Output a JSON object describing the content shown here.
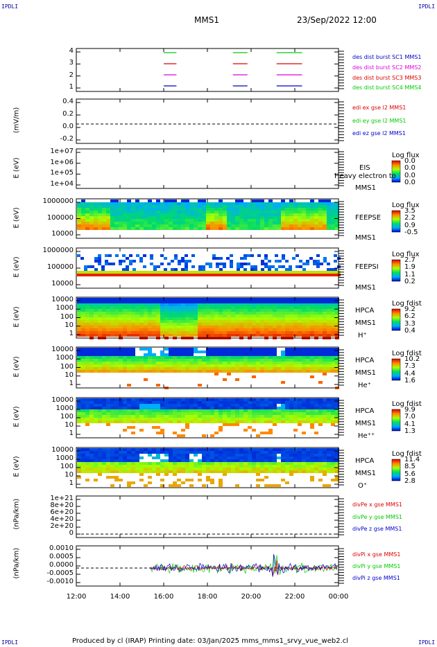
{
  "corners": {
    "tl": "IPDLI",
    "tr": "IPDLI",
    "bl": "IPDLI",
    "br": "IPDLI"
  },
  "header": {
    "spacecraft": "MMS1",
    "datetime": "23/Sep/2022 12:00"
  },
  "footer": "Produced by cl (IRAP)   Printing date: 03/Jan/2025   mms_mms1_srvy_vue_web2.cl",
  "colors": {
    "red": "#dd0000",
    "green": "#00cc00",
    "blue": "#0000cc",
    "magenta": "#dd00dd"
  },
  "chart_data": {
    "type": "multi-panel time series",
    "x_range": [
      "12:00",
      "00:00"
    ],
    "x_ticks": [
      "12:00",
      "14:00",
      "16:00",
      "18:00",
      "20:00",
      "22:00",
      "00:00"
    ],
    "panels": [
      {
        "id": "burst",
        "ylabel": "",
        "ticks": [
          "4",
          "3",
          "2",
          "1"
        ],
        "legend": [
          {
            "text": "des dist burst SC1 MMS1",
            "color": "#0000cc"
          },
          {
            "text": "des dist burst SC2 MMS2",
            "color": "#dd00dd"
          },
          {
            "text": "des dist burst SC3 MMS3",
            "color": "#dd0000"
          },
          {
            "text": "des dist burst SC4 MMS4",
            "color": "#00cc00"
          }
        ],
        "intervals": [
          [
            "16:00",
            "16:35"
          ],
          [
            "19:10",
            "19:50"
          ],
          [
            "21:10",
            "22:20"
          ]
        ]
      },
      {
        "id": "edi",
        "ylabel": "(mV/m)",
        "ticks": [
          "0.4",
          "0.2",
          "0.0",
          "-0.2"
        ],
        "legend": [
          {
            "text": "edi ex gse l2 MMS1",
            "color": "#dd0000"
          },
          {
            "text": "edi ey gse l2 MMS1",
            "color": "#00cc00"
          },
          {
            "text": "edi ez gse l2 MMS1",
            "color": "#0000cc"
          }
        ]
      },
      {
        "id": "eis",
        "ylabel": "E (eV)",
        "ticks": [
          "1e+07",
          "1e+06",
          "1e+05",
          "1e+04"
        ],
        "side": [
          "EIS",
          "Heavy electron to",
          "MMS1"
        ],
        "cbar_title": "Log flux",
        "cbar_vals": [
          "0.0",
          "0.0",
          "0.0",
          "0.0"
        ]
      },
      {
        "id": "feepse",
        "ylabel": "E (eV)",
        "ticks": [
          "1000000",
          "100000",
          "10000"
        ],
        "side": [
          "FEEPSE",
          "MMS1"
        ],
        "cbar_title": "Log flux",
        "cbar_vals": [
          "3.5",
          "2.2",
          "0.9",
          "-0.5"
        ]
      },
      {
        "id": "feepsi",
        "ylabel": "E (eV)",
        "ticks": [
          "1000000",
          "100000",
          "10000"
        ],
        "side": [
          "FEEPSI",
          "MMS1"
        ],
        "cbar_title": "Log flux",
        "cbar_vals": [
          "2.7",
          "1.9",
          "1.1",
          "0.2"
        ]
      },
      {
        "id": "hpca_h",
        "ylabel": "E (eV)",
        "ticks": [
          "10000",
          "1000",
          "100",
          "10",
          "1"
        ],
        "side": [
          "HPCA",
          "MMS1",
          "H⁺"
        ],
        "cbar_title": "Log fdist",
        "cbar_vals": [
          "9.2",
          "6.2",
          "3.3",
          "0.4"
        ]
      },
      {
        "id": "hpca_he",
        "ylabel": "E (eV)",
        "ticks": [
          "10000",
          "1000",
          "100",
          "10",
          "1"
        ],
        "side": [
          "HPCA",
          "MMS1",
          "He⁺"
        ],
        "cbar_title": "Log fdist",
        "cbar_vals": [
          "10.2",
          "7.3",
          "4.4",
          "1.6"
        ]
      },
      {
        "id": "hpca_hepp",
        "ylabel": "E (eV)",
        "ticks": [
          "10000",
          "1000",
          "100",
          "10",
          "1"
        ],
        "side": [
          "HPCA",
          "MMS1",
          "He⁺⁺"
        ],
        "cbar_title": "Log fdist",
        "cbar_vals": [
          "9.9",
          "7.0",
          "4.1",
          "1.3"
        ]
      },
      {
        "id": "hpca_o",
        "ylabel": "E (eV)",
        "ticks": [
          "10000",
          "1000",
          "100",
          "10",
          "1"
        ],
        "side": [
          "HPCA",
          "MMS1",
          "O⁺"
        ],
        "cbar_title": "Log fdist",
        "cbar_vals": [
          "11.4",
          "8.5",
          "5.6",
          "2.8"
        ]
      },
      {
        "id": "divpe",
        "ylabel": "(nPa/km)",
        "ticks": [
          "1e+21",
          "8e+20",
          "6e+20",
          "4e+20",
          "2e+20",
          "0"
        ],
        "legend": [
          {
            "text": "divPe x gse MMS1",
            "color": "#dd0000"
          },
          {
            "text": "divPe y gse MMS1",
            "color": "#00cc00"
          },
          {
            "text": "divPe z gse MMS1",
            "color": "#0000cc"
          }
        ]
      },
      {
        "id": "divpi",
        "ylabel": "(nPa/km)",
        "ticks": [
          "0.0010",
          "0.0005",
          "0.0000",
          "-0.0005",
          "-0.0010"
        ],
        "legend": [
          {
            "text": "divPi x gse MMS1",
            "color": "#dd0000"
          },
          {
            "text": "divPi y gse MMS1",
            "color": "#00cc00"
          },
          {
            "text": "divPi z gse MMS1",
            "color": "#0000cc"
          }
        ]
      }
    ]
  }
}
